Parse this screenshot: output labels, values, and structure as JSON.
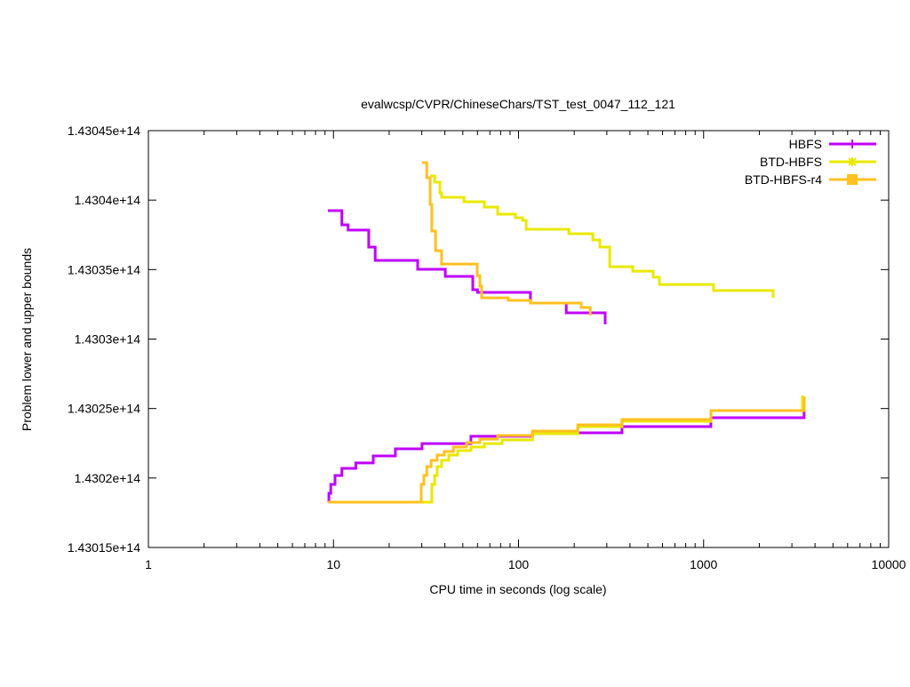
{
  "chart_data": {
    "type": "line",
    "title": "evalwcsp/CVPR/ChineseChars/TST_test_0047_112_121",
    "xlabel": "CPU time in seconds (log scale)",
    "ylabel": "Problem lower and upper bounds",
    "xscale": "log",
    "xlim": [
      1,
      10000
    ],
    "ylim": [
      143015000000000.0,
      143045000000000.0
    ],
    "xticks": [
      1,
      10,
      100,
      1000,
      10000
    ],
    "xtick_labels": [
      "1",
      "10",
      "100",
      "1000",
      "10000"
    ],
    "yticks": [
      143015000000000.0,
      143020000000000.0,
      143025000000000.0,
      143030000000000.0,
      143035000000000.0,
      143040000000000.0,
      143045000000000.0
    ],
    "ytick_labels": [
      "1.43015e+14",
      "1.4302e+14",
      "1.43025e+14",
      "1.4303e+14",
      "1.43035e+14",
      "1.4304e+14",
      "1.43045e+14"
    ],
    "legend_position": "top-right",
    "series": [
      {
        "name": "HBFS",
        "color": "#c000ff",
        "marker": "plus",
        "upper": [
          [
            9.33,
            143039240000000.0
          ],
          [
            11.1,
            143038220000000.0
          ],
          [
            12.0,
            143037840000000.0
          ],
          [
            15.5,
            143036620000000.0
          ],
          [
            16.8,
            143035660000000.0
          ],
          [
            28.5,
            143035020000000.0
          ],
          [
            40.2,
            143034510000000.0
          ],
          [
            56.6,
            143033550000000.0
          ],
          [
            60,
            143033360000000.0
          ],
          [
            116,
            143032590000000.0
          ],
          [
            181,
            143031890000000.0
          ],
          [
            294,
            143031060000000.0
          ]
        ],
        "lower": [
          [
            9.33,
            143018260000000.0
          ],
          [
            9.45,
            143018900000000.0
          ],
          [
            9.67,
            143019540000000.0
          ],
          [
            10.2,
            143020180000000.0
          ],
          [
            11.1,
            143020690000000.0
          ],
          [
            13.2,
            143021080000000.0
          ],
          [
            16.4,
            143021590000000.0
          ],
          [
            21.6,
            143022100000000.0
          ],
          [
            30.1,
            143022480000000.0
          ],
          [
            55.3,
            143023000000000.0
          ],
          [
            119,
            143023250000000.0
          ],
          [
            362,
            143023700000000.0
          ],
          [
            1094,
            143024340000000.0
          ],
          [
            3490,
            143025680000000.0
          ]
        ]
      },
      {
        "name": "BTD-HBFS",
        "color": "#e8e800",
        "marker": "star",
        "upper": [
          [
            33.3,
            143041740000000.0
          ],
          [
            35.2,
            143041290000000.0
          ],
          [
            37.6,
            143040520000000.0
          ],
          [
            38.4,
            143040200000000.0
          ],
          [
            50.7,
            143039880000000.0
          ],
          [
            65.3,
            143039500000000.0
          ],
          [
            77.1,
            143038990000000.0
          ],
          [
            96.2,
            143038730000000.0
          ],
          [
            105,
            143038540000000.0
          ],
          [
            110,
            143037900000000.0
          ],
          [
            187,
            143037580000000.0
          ],
          [
            252,
            143037130000000.0
          ],
          [
            275,
            143036620000000.0
          ],
          [
            311,
            143035210000000.0
          ],
          [
            414,
            143034890000000.0
          ],
          [
            534,
            143034450000000.0
          ],
          [
            577,
            143033930000000.0
          ],
          [
            1132,
            143033490000000.0
          ],
          [
            2376,
            143032970000000.0
          ]
        ],
        "lower": [
          [
            9.33,
            143018260000000.0
          ],
          [
            34.0,
            143019540000000.0
          ],
          [
            35.2,
            143020180000000.0
          ],
          [
            36.3,
            143020820000000.0
          ],
          [
            38.4,
            143021270000000.0
          ],
          [
            42.0,
            143021650000000.0
          ],
          [
            46.9,
            143021970000000.0
          ],
          [
            55.3,
            143022230000000.0
          ],
          [
            65.3,
            143022480000000.0
          ],
          [
            81.5,
            143022740000000.0
          ],
          [
            119,
            143023190000000.0
          ],
          [
            209,
            143023700000000.0
          ],
          [
            362,
            143024080000000.0
          ],
          [
            1096,
            143024850000000.0
          ],
          [
            3420,
            143025940000000.0
          ]
        ]
      },
      {
        "name": "BTD-HBFS-r4",
        "color": "#ffc020",
        "marker": "square",
        "upper": [
          [
            30.1,
            143042700000000.0
          ],
          [
            31.9,
            143041610000000.0
          ],
          [
            33.3,
            143039690000000.0
          ],
          [
            34.0,
            143037770000000.0
          ],
          [
            35.6,
            143036360000000.0
          ],
          [
            38.4,
            143035400000000.0
          ],
          [
            59.8,
            143034570000000.0
          ],
          [
            61.8,
            143033810000000.0
          ],
          [
            63.2,
            143032970000000.0
          ],
          [
            88.1,
            143032780000000.0
          ],
          [
            116,
            143032590000000.0
          ],
          [
            218,
            143032270000000.0
          ],
          [
            244,
            143031700000000.0
          ]
        ],
        "lower": [
          [
            9.33,
            143018260000000.0
          ],
          [
            29.8,
            143019540000000.0
          ],
          [
            30.8,
            143020180000000.0
          ],
          [
            31.9,
            143020820000000.0
          ],
          [
            33.7,
            143021270000000.0
          ],
          [
            36.3,
            143021650000000.0
          ],
          [
            39.7,
            143021910000000.0
          ],
          [
            44.4,
            143022230000000.0
          ],
          [
            52.3,
            143022550000000.0
          ],
          [
            61.8,
            143022800000000.0
          ],
          [
            77.1,
            143023060000000.0
          ],
          [
            119,
            143023380000000.0
          ],
          [
            209,
            143023830000000.0
          ],
          [
            362,
            143024210000000.0
          ],
          [
            1096,
            143024850000000.0
          ],
          [
            3499,
            143025870000000.0
          ]
        ]
      }
    ]
  }
}
